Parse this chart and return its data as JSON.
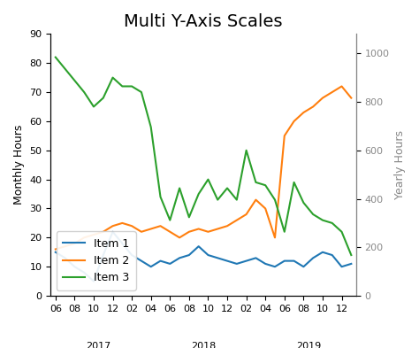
{
  "title": "Multi Y-Axis Scales",
  "ylabel_left": "Monthly Hours",
  "ylabel_right": "Yearly Hours",
  "ylim_left": [
    0,
    90
  ],
  "ylim_right": [
    0,
    1080
  ],
  "yticks_left": [
    0,
    10,
    20,
    30,
    40,
    50,
    60,
    70,
    80,
    90
  ],
  "yticks_right": [
    0,
    200,
    400,
    600,
    800,
    1000
  ],
  "legend_labels": [
    "Item 1",
    "Item 2",
    "Item 3"
  ],
  "colors": [
    "#1f77b4",
    "#ff7f0e",
    "#2ca02c"
  ],
  "month_labels": [
    "06",
    "08",
    "10",
    "12",
    "02",
    "04",
    "06",
    "08",
    "10",
    "12",
    "02",
    "04",
    "06",
    "08",
    "10",
    "12"
  ],
  "year_labels": [
    "2017",
    "2018",
    "2019"
  ],
  "item1": [
    15,
    13,
    10,
    8,
    5,
    14,
    22,
    18,
    14,
    12,
    10,
    12,
    11,
    13,
    14,
    17,
    14,
    13,
    12,
    11,
    12,
    13,
    11,
    10,
    12,
    12,
    10,
    13,
    15,
    14,
    10,
    11
  ],
  "item2": [
    16,
    17,
    18,
    20,
    21,
    22,
    24,
    25,
    24,
    22,
    23,
    24,
    22,
    20,
    22,
    23,
    22,
    23,
    24,
    26,
    28,
    33,
    30,
    20,
    55,
    60,
    63,
    65,
    68,
    70,
    72,
    68
  ],
  "item3": [
    82,
    78,
    74,
    70,
    65,
    68,
    75,
    72,
    72,
    70,
    58,
    34,
    26,
    37,
    27,
    35,
    40,
    33,
    37,
    33,
    50,
    39,
    38,
    33,
    22,
    39,
    32,
    28,
    26,
    25,
    22,
    14
  ],
  "background_color": "#ffffff",
  "plot_bg_color": "#ffffff",
  "title_fontsize": 14,
  "axis_fontsize": 9,
  "tick_fontsize": 8
}
